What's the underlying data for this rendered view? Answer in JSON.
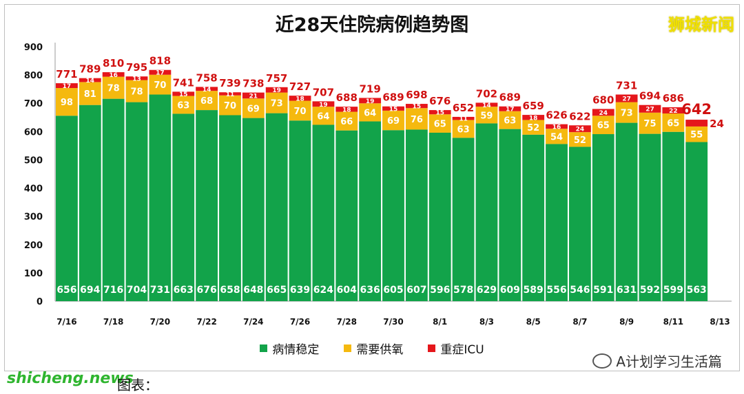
{
  "title": "近28天住院病例趋势图",
  "brand": "狮城新闻",
  "wechat_account": "A计划学习生活篇",
  "watermark": "shicheng.news",
  "caption": "图表：",
  "colors": {
    "stable": "#12a34a",
    "oxygen": "#f5b90f",
    "icu": "#e5161b",
    "total_label": "#d01010",
    "axis": "#999999"
  },
  "chart_data": {
    "type": "bar",
    "stacked": true,
    "title": "近28天住院病例趋势图",
    "xlabel": "",
    "ylabel": "",
    "ylim": [
      0,
      900
    ],
    "yticks": [
      0,
      100,
      200,
      300,
      400,
      500,
      600,
      700,
      800,
      900
    ],
    "grid": false,
    "legend_position": "bottom",
    "categories": [
      "7/16",
      "7/17",
      "7/18",
      "7/19",
      "7/20",
      "7/21",
      "7/22",
      "7/23",
      "7/24",
      "7/25",
      "7/26",
      "7/27",
      "7/28",
      "7/29",
      "7/30",
      "7/31",
      "8/1",
      "8/2",
      "8/3",
      "8/4",
      "8/5",
      "8/6",
      "8/7",
      "8/8",
      "8/9",
      "8/10",
      "8/11",
      "8/12",
      "8/13"
    ],
    "x_tick_labels": [
      "7/16",
      "7/18",
      "7/20",
      "7/22",
      "7/24",
      "7/26",
      "7/28",
      "7/30",
      "8/1",
      "8/3",
      "8/5",
      "8/7",
      "8/9",
      "8/11",
      "8/13"
    ],
    "series": [
      {
        "name": "病情稳定",
        "values": [
          656,
          694,
          716,
          704,
          731,
          663,
          676,
          658,
          648,
          665,
          639,
          624,
          604,
          636,
          605,
          607,
          596,
          578,
          629,
          609,
          589,
          556,
          546,
          591,
          631,
          592,
          599,
          563,
          null
        ]
      },
      {
        "name": "需要供氧",
        "values": [
          98,
          81,
          78,
          78,
          70,
          63,
          68,
          70,
          69,
          73,
          70,
          64,
          66,
          64,
          69,
          76,
          65,
          63,
          59,
          63,
          52,
          54,
          52,
          65,
          73,
          75,
          65,
          55,
          null
        ]
      },
      {
        "name": "重症ICU",
        "values": [
          17,
          14,
          16,
          13,
          17,
          15,
          14,
          11,
          21,
          19,
          18,
          19,
          18,
          19,
          15,
          15,
          15,
          11,
          14,
          17,
          18,
          16,
          24,
          24,
          27,
          27,
          22,
          24,
          null
        ]
      }
    ],
    "totals": [
      771,
      789,
      810,
      795,
      818,
      741,
      758,
      739,
      738,
      757,
      727,
      707,
      688,
      719,
      689,
      698,
      676,
      652,
      702,
      689,
      659,
      626,
      622,
      680,
      731,
      694,
      686,
      642,
      null
    ]
  }
}
